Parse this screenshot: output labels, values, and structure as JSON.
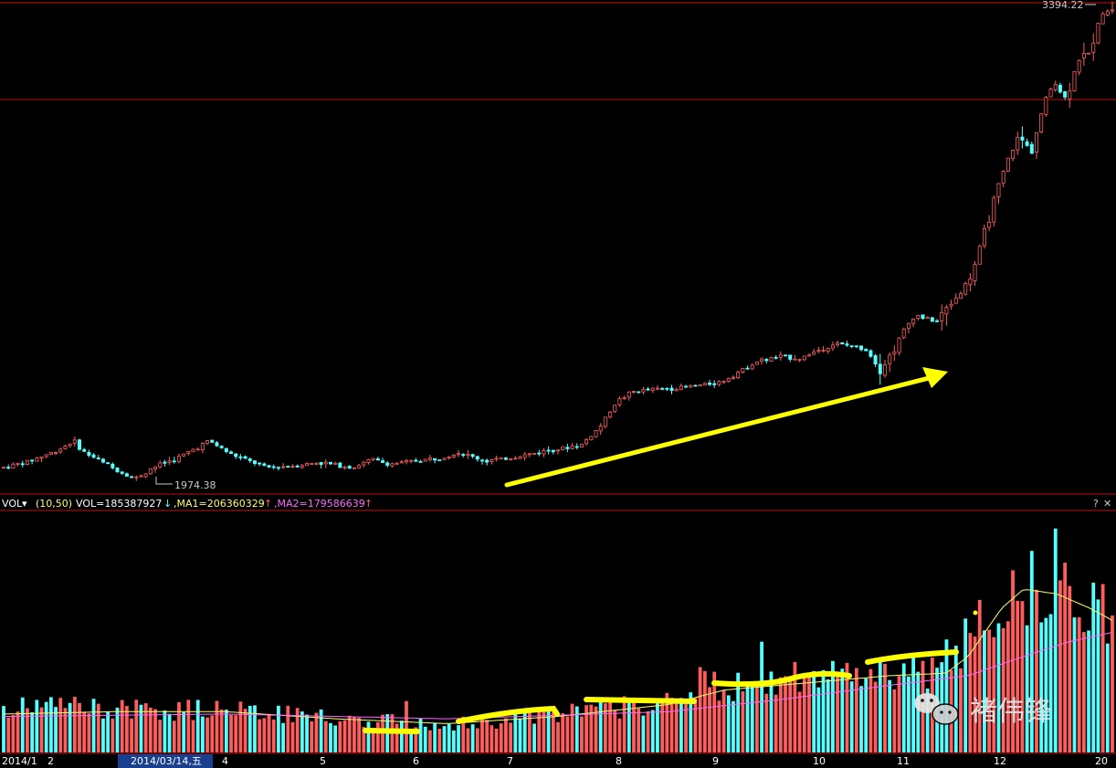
{
  "chart_data": [
    {
      "type": "candlestick",
      "description": "Daily K-line price panel",
      "price_high_label": "3394.22",
      "price_low_label": "1974.38",
      "ylim": [
        1960,
        3400
      ],
      "reference_line_value": 2985,
      "trend": [
        [
          0,
          2010
        ],
        [
          0.03,
          2030
        ],
        [
          0.06,
          2060
        ],
        [
          0.08,
          2090
        ],
        [
          0.09,
          2060
        ],
        [
          0.11,
          2030
        ],
        [
          0.13,
          2000
        ],
        [
          0.15,
          1976
        ],
        [
          0.17,
          2010
        ],
        [
          0.2,
          2040
        ],
        [
          0.22,
          2070
        ],
        [
          0.235,
          2090
        ],
        [
          0.26,
          2050
        ],
        [
          0.28,
          2030
        ],
        [
          0.3,
          2010
        ],
        [
          0.33,
          2015
        ],
        [
          0.36,
          2025
        ],
        [
          0.4,
          2010
        ],
        [
          0.42,
          2035
        ],
        [
          0.44,
          2020
        ],
        [
          0.47,
          2030
        ],
        [
          0.5,
          2040
        ],
        [
          0.52,
          2055
        ],
        [
          0.55,
          2030
        ],
        [
          0.58,
          2040
        ],
        [
          0.6,
          2050
        ],
        [
          0.62,
          2060
        ],
        [
          0.66,
          2080
        ],
        [
          0.68,
          2130
        ],
        [
          0.7,
          2210
        ],
        [
          0.72,
          2240
        ],
        [
          0.74,
          2245
        ],
        [
          0.77,
          2250
        ],
        [
          0.8,
          2260
        ],
        [
          0.82,
          2270
        ],
        [
          0.84,
          2300
        ],
        [
          0.86,
          2330
        ],
        [
          0.89,
          2345
        ],
        [
          0.91,
          2340
        ],
        [
          0.935,
          2370
        ],
        [
          0.95,
          2385
        ],
        [
          0.97,
          2375
        ],
        [
          0.985,
          2365
        ],
        [
          1,
          2310
        ]
      ],
      "trend_part2": [
        [
          0,
          2310
        ],
        [
          0.05,
          2350
        ],
        [
          0.1,
          2420
        ],
        [
          0.15,
          2470
        ],
        [
          0.2,
          2460
        ],
        [
          0.25,
          2450
        ],
        [
          0.3,
          2500
        ],
        [
          0.35,
          2540
        ],
        [
          0.4,
          2600
        ],
        [
          0.45,
          2720
        ],
        [
          0.5,
          2830
        ],
        [
          0.55,
          2940
        ],
        [
          0.6,
          3010
        ],
        [
          0.65,
          2960
        ],
        [
          0.7,
          3090
        ],
        [
          0.75,
          3180
        ],
        [
          0.8,
          3120
        ],
        [
          0.85,
          3240
        ],
        [
          0.9,
          3260
        ],
        [
          0.95,
          3380
        ],
        [
          1,
          3394
        ]
      ]
    },
    {
      "type": "bar",
      "description": "Volume panel with two moving averages",
      "header": {
        "indicator": "VOL",
        "params": "(10,50)",
        "vol_label": "VOL=185387927",
        "vol_arrow": "↓",
        "ma1_label": ",MA1=206360329",
        "ma1_arrow": "↑",
        "ma2_label": ",MA2=179586639",
        "ma2_arrow": "↑",
        "help_label": "?",
        "close_label": "✕"
      },
      "volume_profile": [
        [
          0,
          0.18
        ],
        [
          0.05,
          0.2
        ],
        [
          0.1,
          0.18
        ],
        [
          0.15,
          0.17
        ],
        [
          0.2,
          0.19
        ],
        [
          0.25,
          0.16
        ],
        [
          0.3,
          0.14
        ],
        [
          0.35,
          0.13
        ],
        [
          0.4,
          0.12
        ],
        [
          0.45,
          0.13
        ],
        [
          0.5,
          0.16
        ],
        [
          0.55,
          0.18
        ],
        [
          0.6,
          0.22
        ],
        [
          0.63,
          0.3
        ],
        [
          0.66,
          0.27
        ],
        [
          0.7,
          0.3
        ],
        [
          0.75,
          0.32
        ],
        [
          0.78,
          0.34
        ],
        [
          0.8,
          0.33
        ],
        [
          0.82,
          0.36
        ],
        [
          0.84,
          0.32
        ],
        [
          0.86,
          0.4
        ],
        [
          0.88,
          0.55
        ],
        [
          0.9,
          0.6
        ],
        [
          0.92,
          0.72
        ],
        [
          0.94,
          0.62
        ],
        [
          0.96,
          0.7
        ],
        [
          0.98,
          0.58
        ],
        [
          1,
          0.55
        ]
      ],
      "ma1_profile": [
        [
          0,
          0.16
        ],
        [
          0.1,
          0.17
        ],
        [
          0.2,
          0.17
        ],
        [
          0.3,
          0.14
        ],
        [
          0.4,
          0.12
        ],
        [
          0.5,
          0.15
        ],
        [
          0.6,
          0.2
        ],
        [
          0.65,
          0.26
        ],
        [
          0.7,
          0.28
        ],
        [
          0.75,
          0.3
        ],
        [
          0.8,
          0.32
        ],
        [
          0.85,
          0.33
        ],
        [
          0.87,
          0.4
        ],
        [
          0.9,
          0.6
        ],
        [
          0.92,
          0.68
        ],
        [
          0.95,
          0.66
        ],
        [
          0.98,
          0.6
        ],
        [
          1,
          0.55
        ]
      ],
      "ma2_profile": [
        [
          0,
          0.15
        ],
        [
          0.2,
          0.16
        ],
        [
          0.4,
          0.14
        ],
        [
          0.6,
          0.17
        ],
        [
          0.7,
          0.22
        ],
        [
          0.8,
          0.28
        ],
        [
          0.87,
          0.32
        ],
        [
          0.92,
          0.4
        ],
        [
          0.96,
          0.46
        ],
        [
          1,
          0.5
        ]
      ]
    }
  ],
  "x_axis": {
    "labels": [
      "2014/1",
      "2",
      "2014/03/14,五",
      "4",
      "5",
      "6",
      "7",
      "8",
      "9",
      "10",
      "11",
      "12",
      "20"
    ],
    "highlighted_label": "2014/03/14,五"
  },
  "annotations": {
    "arrow": "yellow uptrend arrow drawn on price panel",
    "highlighter": "yellow hand-drawn strokes marking rising volume plateaus"
  },
  "watermark": {
    "text": "褚伟锋",
    "icon": "wechat-icon"
  },
  "colors": {
    "up": "#ff5c5c",
    "down": "#54ffff",
    "ma1": "#ffff66",
    "ma2": "#ff66ff",
    "grid_red": "#c01010",
    "annotation": "#ffff00",
    "axis_text": "#ffffff",
    "date_highlight_bg": "#1a3f8f"
  }
}
